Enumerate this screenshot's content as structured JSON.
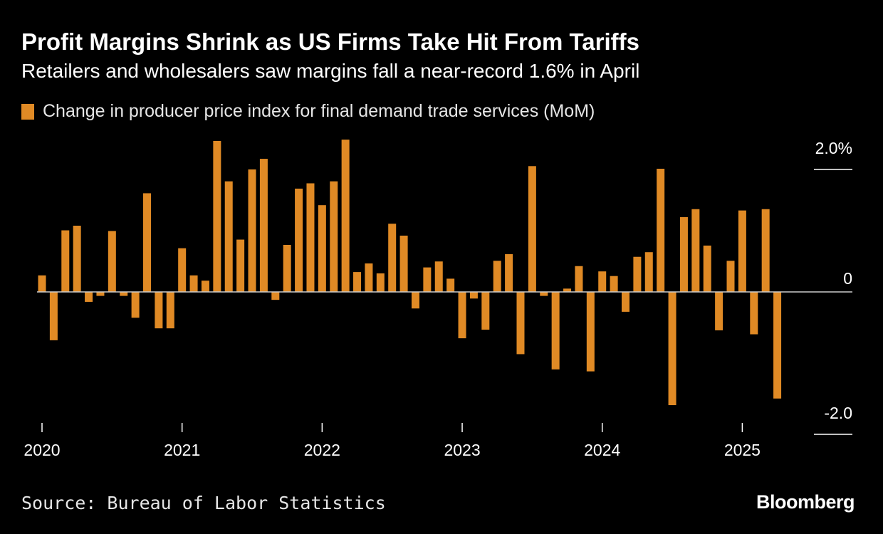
{
  "header": {
    "title": "Profit Margins Shrink as US Firms Take Hit From Tariffs",
    "subtitle": "Retailers and wholesalers saw margins fall a near-record 1.6% in April"
  },
  "legend": {
    "label": "Change in producer price index for final demand trade services (MoM)"
  },
  "footer": {
    "source": "Source: Bureau of Labor Statistics",
    "brand": "Bloomberg"
  },
  "colors": {
    "bar": "#e08a25",
    "background": "#000000",
    "axis": "#ffffff",
    "text": "#ffffff"
  },
  "chart_data": {
    "type": "bar",
    "title": "Profit Margins Shrink as US Firms Take Hit From Tariffs",
    "subtitle": "Retailers and wholesalers saw margins fall a near-record 1.6% in April",
    "series": [
      {
        "name": "Change in producer price index for final demand trade services (MoM)",
        "start": "2020-01",
        "frequency": "monthly",
        "values": [
          0.25,
          -0.73,
          0.93,
          1.0,
          -0.15,
          -0.06,
          0.92,
          -0.06,
          -0.39,
          1.49,
          -0.55,
          -0.55,
          0.66,
          0.25,
          0.17,
          2.28,
          1.67,
          0.79,
          1.85,
          2.01,
          -0.12,
          0.71,
          1.56,
          1.64,
          1.31,
          1.67,
          2.3,
          0.3,
          0.43,
          0.28,
          1.03,
          0.85,
          -0.25,
          0.37,
          0.46,
          0.2,
          -0.7,
          -0.1,
          -0.57,
          0.47,
          0.57,
          -0.94,
          1.9,
          -0.06,
          -1.17,
          0.05,
          0.39,
          -1.2,
          0.31,
          0.24,
          -0.3,
          0.53,
          0.6,
          1.86,
          -1.71,
          1.13,
          1.25,
          0.7,
          -0.58,
          0.47,
          1.23,
          -0.64,
          1.25,
          -1.61
        ]
      }
    ],
    "x_ticks": [
      "2020",
      "2021",
      "2022",
      "2023",
      "2024",
      "2025"
    ],
    "y_ticks": [
      {
        "value": 2.0,
        "label": "2.0%"
      },
      {
        "value": 0,
        "label": "0"
      },
      {
        "value": -2.0,
        "label": "-2.0"
      }
    ],
    "ylim": [
      -2.0,
      2.0
    ],
    "xlabel": "",
    "ylabel": ""
  }
}
